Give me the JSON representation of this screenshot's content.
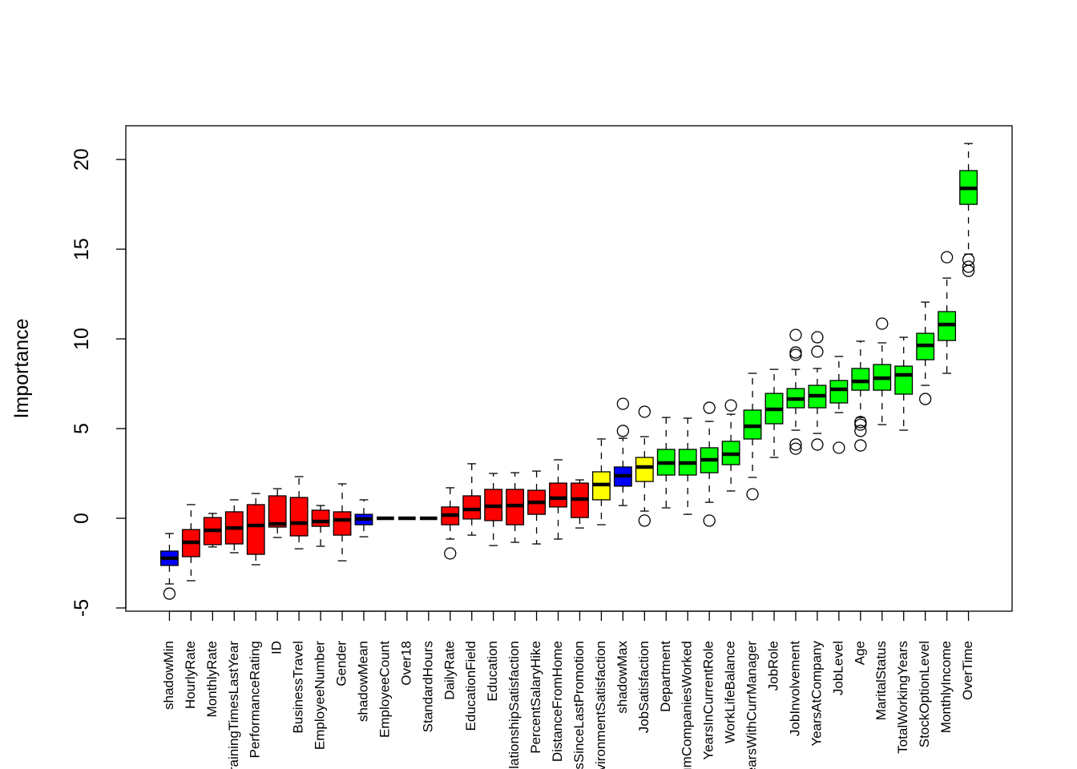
{
  "chart_data": {
    "type": "boxplot",
    "y_label": "Importance",
    "ylim": [
      -5.18,
      21.88
    ],
    "yticks": [
      -5,
      0,
      5,
      10,
      15,
      20
    ],
    "categories": [
      "shadowMin",
      "HourlyRate",
      "MonthlyRate",
      "TrainingTimesLastYear",
      "PerformanceRating",
      "ID",
      "BusinessTravel",
      "EmployeeNumber",
      "Gender",
      "shadowMean",
      "EmployeeCount",
      "Over18",
      "StandardHours",
      "DailyRate",
      "EducationField",
      "Education",
      "RelationshipSatisfaction",
      "PercentSalaryHike",
      "DistanceFromHome",
      "YearsSinceLastPromotion",
      "EnvironmentSatisfaction",
      "shadowMax",
      "JobSatisfaction",
      "Department",
      "NumCompaniesWorked",
      "YearsInCurrentRole",
      "WorkLifeBalance",
      "YearsWithCurrManager",
      "JobRole",
      "JobInvolvement",
      "YearsAtCompany",
      "JobLevel",
      "Age",
      "MaritalStatus",
      "TotalWorkingYears",
      "StockOptionLevel",
      "MonthlyIncome",
      "OverTime"
    ],
    "boxes": [
      {
        "whisker_low": -3.66,
        "q1": -2.63,
        "median": -2.23,
        "q3": -1.83,
        "whisker_high": -0.85,
        "outliers": [
          -4.2
        ],
        "color": "#0000ff"
      },
      {
        "whisker_low": -3.48,
        "q1": -2.14,
        "median": -1.34,
        "q3": -0.63,
        "whisker_high": 0.76,
        "outliers": [],
        "color": "#ff0000"
      },
      {
        "whisker_low": -1.6,
        "q1": -1.47,
        "median": -0.67,
        "q3": 0.04,
        "whisker_high": 0.27,
        "outliers": [],
        "color": "#ff0000"
      },
      {
        "whisker_low": -1.92,
        "q1": -1.43,
        "median": -0.54,
        "q3": 0.36,
        "whisker_high": 1.03,
        "outliers": [],
        "color": "#ff0000"
      },
      {
        "whisker_low": -2.59,
        "q1": -2.01,
        "median": -0.4,
        "q3": 0.76,
        "whisker_high": 1.38,
        "outliers": [],
        "color": "#ff0000"
      },
      {
        "whisker_low": -1.07,
        "q1": -0.49,
        "median": -0.31,
        "q3": 1.25,
        "whisker_high": 1.65,
        "outliers": [],
        "color": "#ff0000"
      },
      {
        "whisker_low": -1.7,
        "q1": -0.98,
        "median": -0.27,
        "q3": 1.16,
        "whisker_high": 2.32,
        "outliers": [],
        "color": "#ff0000"
      },
      {
        "whisker_low": -1.56,
        "q1": -0.45,
        "median": -0.18,
        "q3": 0.45,
        "whisker_high": 0.71,
        "outliers": [],
        "color": "#ff0000"
      },
      {
        "whisker_low": -2.37,
        "q1": -0.94,
        "median": -0.09,
        "q3": 0.36,
        "whisker_high": 1.92,
        "outliers": [],
        "color": "#ff0000"
      },
      {
        "whisker_low": -1.03,
        "q1": -0.36,
        "median": -0.04,
        "q3": 0.22,
        "whisker_high": 1.03,
        "outliers": [],
        "color": "#0000ff"
      },
      {
        "whisker_low": 0,
        "q1": 0,
        "median": 0,
        "q3": 0,
        "whisker_high": 0,
        "outliers": [],
        "color": "#ff0000"
      },
      {
        "whisker_low": 0,
        "q1": 0,
        "median": 0,
        "q3": 0,
        "whisker_high": 0,
        "outliers": [],
        "color": "#ff0000"
      },
      {
        "whisker_low": 0,
        "q1": 0,
        "median": 0,
        "q3": 0,
        "whisker_high": 0,
        "outliers": [],
        "color": "#ff0000"
      },
      {
        "whisker_low": -1.16,
        "q1": -0.36,
        "median": 0.18,
        "q3": 0.63,
        "whisker_high": 1.7,
        "outliers": [
          -1.96
        ],
        "color": "#ff0000"
      },
      {
        "whisker_low": -0.94,
        "q1": -0.04,
        "median": 0.49,
        "q3": 1.25,
        "whisker_high": 3.04,
        "outliers": [],
        "color": "#ff0000"
      },
      {
        "whisker_low": -1.52,
        "q1": -0.13,
        "median": 0.67,
        "q3": 1.61,
        "whisker_high": 2.5,
        "outliers": [],
        "color": "#ff0000"
      },
      {
        "whisker_low": -1.34,
        "q1": -0.36,
        "median": 0.71,
        "q3": 1.61,
        "whisker_high": 2.54,
        "outliers": [],
        "color": "#ff0000"
      },
      {
        "whisker_low": -1.43,
        "q1": 0.22,
        "median": 0.89,
        "q3": 1.56,
        "whisker_high": 2.63,
        "outliers": [],
        "color": "#ff0000"
      },
      {
        "whisker_low": -1.16,
        "q1": 0.63,
        "median": 1.12,
        "q3": 1.96,
        "whisker_high": 3.26,
        "outliers": [],
        "color": "#ff0000"
      },
      {
        "whisker_low": -0.54,
        "q1": 0.04,
        "median": 1.07,
        "q3": 1.96,
        "whisker_high": 2.14,
        "outliers": [],
        "color": "#ff0000"
      },
      {
        "whisker_low": -0.36,
        "q1": 1.03,
        "median": 1.88,
        "q3": 2.59,
        "whisker_high": 4.42,
        "outliers": [],
        "color": "#ffff00"
      },
      {
        "whisker_low": 0.71,
        "q1": 1.79,
        "median": 2.37,
        "q3": 2.86,
        "whisker_high": 4.46,
        "outliers": [
          6.38,
          4.87
        ],
        "color": "#0000ff"
      },
      {
        "whisker_low": 0.4,
        "q1": 2.05,
        "median": 2.86,
        "q3": 3.39,
        "whisker_high": 4.55,
        "outliers": [
          5.94,
          -0.13
        ],
        "color": "#ffff00"
      },
      {
        "whisker_low": 0.58,
        "q1": 2.41,
        "median": 3.08,
        "q3": 3.84,
        "whisker_high": 5.62,
        "outliers": [],
        "color": "#00ff00"
      },
      {
        "whisker_low": 0.22,
        "q1": 2.41,
        "median": 3.08,
        "q3": 3.84,
        "whisker_high": 5.58,
        "outliers": [],
        "color": "#00ff00"
      },
      {
        "whisker_low": 0.89,
        "q1": 2.54,
        "median": 3.26,
        "q3": 3.93,
        "whisker_high": 5.4,
        "outliers": [
          6.16,
          -0.13
        ],
        "color": "#00ff00"
      },
      {
        "whisker_low": 1.52,
        "q1": 2.99,
        "median": 3.57,
        "q3": 4.29,
        "whisker_high": 5.8,
        "outliers": [
          6.29
        ],
        "color": "#00ff00"
      },
      {
        "whisker_low": 2.28,
        "q1": 4.42,
        "median": 5.13,
        "q3": 6.03,
        "whisker_high": 8.08,
        "outliers": [
          1.34
        ],
        "color": "#00ff00"
      },
      {
        "whisker_low": 3.39,
        "q1": 5.27,
        "median": 6.07,
        "q3": 6.96,
        "whisker_high": 8.3,
        "outliers": [],
        "color": "#00ff00"
      },
      {
        "whisker_low": 4.91,
        "q1": 6.16,
        "median": 6.65,
        "q3": 7.23,
        "whisker_high": 8.3,
        "outliers": [
          10.22,
          9.24,
          9.11,
          4.11,
          3.88
        ],
        "color": "#00ff00"
      },
      {
        "whisker_low": 4.73,
        "q1": 6.16,
        "median": 6.83,
        "q3": 7.41,
        "whisker_high": 8.35,
        "outliers": [
          10.09,
          9.29,
          4.11
        ],
        "color": "#00ff00"
      },
      {
        "whisker_low": 5.89,
        "q1": 6.43,
        "median": 7.19,
        "q3": 7.68,
        "whisker_high": 9.02,
        "outliers": [
          3.93
        ],
        "color": "#00ff00"
      },
      {
        "whisker_low": 5.62,
        "q1": 7.14,
        "median": 7.63,
        "q3": 8.35,
        "whisker_high": 9.87,
        "outliers": [
          5.36,
          5.22,
          4.87,
          4.06
        ],
        "color": "#00ff00"
      },
      {
        "whisker_low": 5.22,
        "q1": 7.14,
        "median": 7.81,
        "q3": 8.57,
        "whisker_high": 9.78,
        "outliers": [
          10.85
        ],
        "color": "#00ff00"
      },
      {
        "whisker_low": 4.91,
        "q1": 6.92,
        "median": 7.99,
        "q3": 8.48,
        "whisker_high": 10.09,
        "outliers": [],
        "color": "#00ff00"
      },
      {
        "whisker_low": 7.41,
        "q1": 8.84,
        "median": 9.64,
        "q3": 10.31,
        "whisker_high": 12.05,
        "outliers": [
          6.65
        ],
        "color": "#00ff00"
      },
      {
        "whisker_low": 8.08,
        "q1": 9.91,
        "median": 10.8,
        "q3": 11.52,
        "whisker_high": 13.39,
        "outliers": [
          14.55
        ],
        "color": "#00ff00"
      },
      {
        "whisker_low": 14.73,
        "q1": 17.5,
        "median": 18.39,
        "q3": 19.38,
        "whisker_high": 20.89,
        "outliers": [
          14.42,
          14.02,
          13.79
        ],
        "color": "#00ff00"
      }
    ]
  }
}
